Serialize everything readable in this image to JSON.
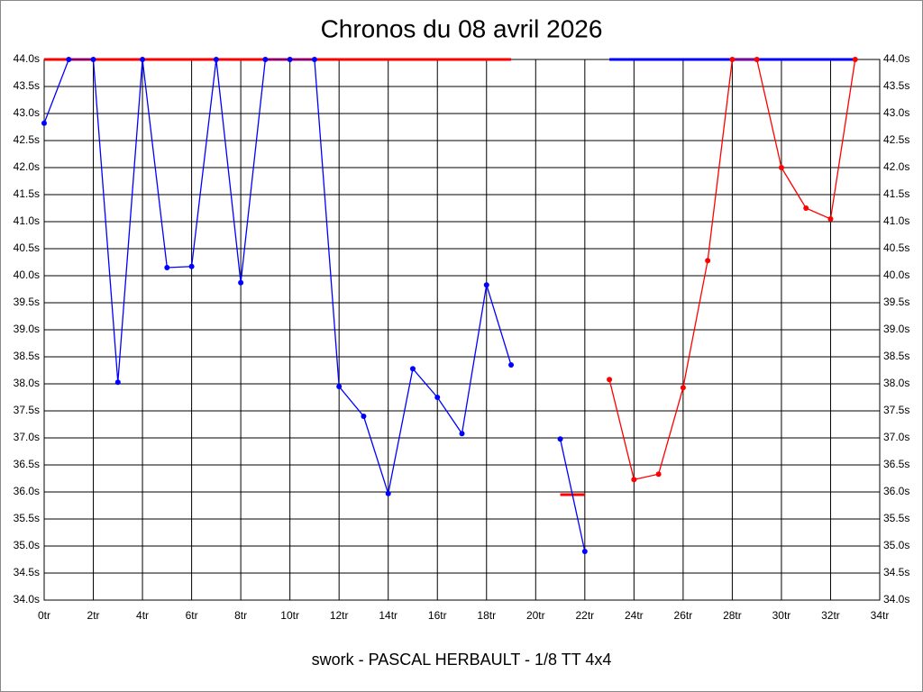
{
  "chart_data": {
    "type": "line",
    "title": "Chronos du 08 avril 2026",
    "x_label": "swork - PASCAL HERBAULT - 1/8 TT 4x4",
    "x": [
      0,
      1,
      2,
      3,
      4,
      5,
      6,
      7,
      8,
      9,
      10,
      11,
      12,
      13,
      14,
      15,
      16,
      17,
      18,
      19,
      20,
      21,
      22,
      23,
      24,
      25,
      26,
      27,
      28,
      29,
      30,
      31,
      32,
      33
    ],
    "series": [
      {
        "color": "#0000ff",
        "values": [
          42.82,
          44.0,
          44.0,
          38.03,
          44.0,
          40.15,
          40.17,
          44.0,
          39.87,
          44.0,
          44.0,
          44.0,
          37.95,
          37.4,
          35.97,
          38.28,
          37.75,
          37.08,
          39.83,
          38.35,
          null,
          36.98,
          34.9,
          null,
          null,
          null,
          null,
          null,
          null,
          null,
          null,
          null,
          null,
          null
        ]
      },
      {
        "color": "#ff0000",
        "values": [
          null,
          null,
          null,
          null,
          null,
          null,
          null,
          null,
          null,
          null,
          null,
          null,
          null,
          null,
          null,
          null,
          null,
          null,
          null,
          null,
          null,
          null,
          null,
          38.08,
          36.23,
          36.33,
          37.93,
          40.28,
          44.0,
          44.0,
          42.0,
          41.25,
          41.05,
          44.0
        ]
      }
    ],
    "reference_lines": [
      {
        "color": "#ff0000",
        "value": 44.0,
        "x": [
          0,
          19
        ]
      },
      {
        "color": "#ff0000",
        "value": 35.95,
        "x": [
          21,
          22
        ]
      },
      {
        "color": "#0000ff",
        "value": 44.0,
        "x": [
          23,
          33
        ]
      }
    ],
    "xlim": [
      0,
      34
    ],
    "ylim": [
      34,
      44
    ],
    "xticks": [
      {
        "value": 0,
        "label": "0tr"
      },
      {
        "value": 2,
        "label": "2tr"
      },
      {
        "value": 4,
        "label": "4tr"
      },
      {
        "value": 6,
        "label": "6tr"
      },
      {
        "value": 8,
        "label": "8tr"
      },
      {
        "value": 10,
        "label": "10tr"
      },
      {
        "value": 12,
        "label": "12tr"
      },
      {
        "value": 14,
        "label": "14tr"
      },
      {
        "value": 16,
        "label": "16tr"
      },
      {
        "value": 18,
        "label": "18tr"
      },
      {
        "value": 20,
        "label": "20tr"
      },
      {
        "value": 22,
        "label": "22tr"
      },
      {
        "value": 24,
        "label": "24tr"
      },
      {
        "value": 26,
        "label": "26tr"
      },
      {
        "value": 28,
        "label": "28tr"
      },
      {
        "value": 30,
        "label": "30tr"
      },
      {
        "value": 32,
        "label": "32tr"
      },
      {
        "value": 34,
        "label": "34tr"
      }
    ],
    "yticks": [
      {
        "value": 34,
        "label": "34.0s"
      },
      {
        "value": 34.5,
        "label": "34.5s"
      },
      {
        "value": 35,
        "label": "35.0s"
      },
      {
        "value": 35.5,
        "label": "35.5s"
      },
      {
        "value": 36,
        "label": "36.0s"
      },
      {
        "value": 36.5,
        "label": "36.5s"
      },
      {
        "value": 37,
        "label": "37.0s"
      },
      {
        "value": 37.5,
        "label": "37.5s"
      },
      {
        "value": 38,
        "label": "38.0s"
      },
      {
        "value": 38.5,
        "label": "38.5s"
      },
      {
        "value": 39,
        "label": "39.0s"
      },
      {
        "value": 39.5,
        "label": "39.5s"
      },
      {
        "value": 40,
        "label": "40.0s"
      },
      {
        "value": 40.5,
        "label": "40.5s"
      },
      {
        "value": 41,
        "label": "41.0s"
      },
      {
        "value": 41.5,
        "label": "41.5s"
      },
      {
        "value": 42,
        "label": "42.0s"
      },
      {
        "value": 42.5,
        "label": "42.5s"
      },
      {
        "value": 43,
        "label": "43.0s"
      },
      {
        "value": 43.5,
        "label": "43.5s"
      },
      {
        "value": 44,
        "label": "44.0s"
      }
    ],
    "grid": true
  }
}
